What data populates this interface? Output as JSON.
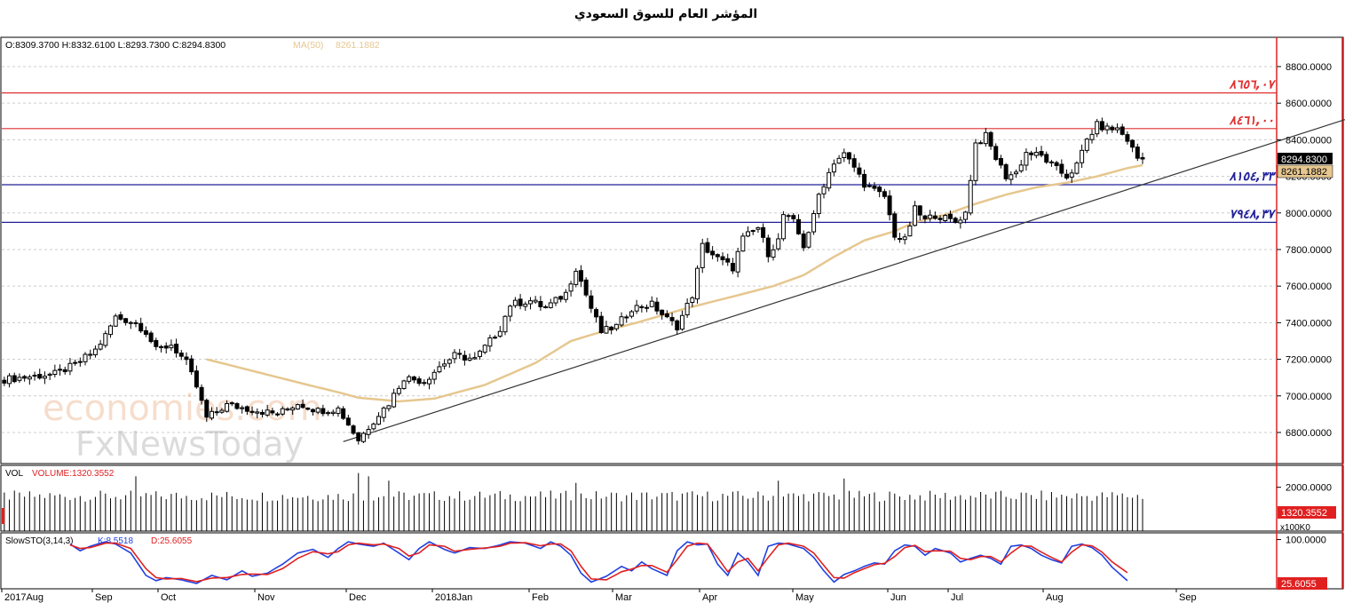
{
  "title": "المؤشر العام للسوق السعودي",
  "watermark": {
    "line1": "economies.com",
    "line2": "FxNewsToday"
  },
  "header": {
    "ohlc": "O:8309.3700  H:8332.6100  L:8293.7300  C:8294.8300",
    "ma_label": "MA(50)",
    "ma_value": "8261.1882"
  },
  "colors": {
    "candle": "#000000",
    "ma": "#e6c78f",
    "resistance": "#e03030",
    "support": "#20209a",
    "trendline": "#333333",
    "stoch_k": "#2040e0",
    "stoch_d": "#e02020",
    "axis_red": "#e02020",
    "grid": "#cccccc"
  },
  "chart_data": {
    "type": "candlestick",
    "y_axis": {
      "ticks": [
        "8800.0000",
        "8600.0000",
        "8400.0000",
        "8200.0000",
        "8000.0000",
        "7800.0000",
        "7600.0000",
        "7400.0000",
        "7200.0000",
        "7000.0000",
        "6800.0000"
      ],
      "ylim": [
        6630,
        8960
      ]
    },
    "x_axis": {
      "labels": [
        "2017Aug",
        "Sep",
        "Oct",
        "Nov",
        "Dec",
        "2018Jan",
        "Feb",
        "Mar",
        "Apr",
        "May",
        "Jun",
        "Jul",
        "Aug",
        "Sep"
      ]
    },
    "price_path": [
      [
        0,
        7090
      ],
      [
        10,
        7120
      ],
      [
        14,
        7170
      ],
      [
        18,
        7250
      ],
      [
        20,
        7330
      ],
      [
        22,
        7430
      ],
      [
        26,
        7400
      ],
      [
        28,
        7350
      ],
      [
        30,
        7250
      ],
      [
        33,
        7280
      ],
      [
        36,
        7180
      ],
      [
        38,
        7050
      ],
      [
        40,
        6880
      ],
      [
        44,
        6950
      ],
      [
        50,
        6920
      ],
      [
        54,
        6900
      ],
      [
        58,
        6960
      ],
      [
        62,
        6920
      ],
      [
        66,
        6930
      ],
      [
        70,
        6760
      ],
      [
        74,
        6900
      ],
      [
        76,
        6960
      ],
      [
        79,
        7100
      ],
      [
        83,
        7080
      ],
      [
        86,
        7160
      ],
      [
        89,
        7220
      ],
      [
        93,
        7200
      ],
      [
        96,
        7300
      ],
      [
        98,
        7370
      ],
      [
        100,
        7500
      ],
      [
        104,
        7520
      ],
      [
        107,
        7480
      ],
      [
        111,
        7560
      ],
      [
        113,
        7700
      ],
      [
        116,
        7480
      ],
      [
        118,
        7350
      ],
      [
        121,
        7380
      ],
      [
        124,
        7480
      ],
      [
        128,
        7500
      ],
      [
        131,
        7420
      ],
      [
        133,
        7380
      ],
      [
        136,
        7550
      ],
      [
        138,
        7820
      ],
      [
        141,
        7750
      ],
      [
        144,
        7700
      ],
      [
        146,
        7860
      ],
      [
        149,
        7920
      ],
      [
        151,
        7780
      ],
      [
        153,
        7850
      ],
      [
        154,
        7990
      ],
      [
        156,
        7950
      ],
      [
        158,
        7820
      ],
      [
        160,
        7980
      ],
      [
        161,
        8100
      ],
      [
        164,
        8280
      ],
      [
        166,
        8320
      ],
      [
        168,
        8250
      ],
      [
        170,
        8160
      ],
      [
        172,
        8120
      ],
      [
        174,
        8090
      ],
      [
        176,
        7880
      ],
      [
        178,
        7850
      ],
      [
        180,
        8020
      ],
      [
        182,
        7960
      ],
      [
        184,
        7990
      ],
      [
        186,
        7970
      ],
      [
        188,
        7950
      ],
      [
        190,
        8000
      ],
      [
        192,
        8380
      ],
      [
        194,
        8420
      ],
      [
        196,
        8300
      ],
      [
        198,
        8200
      ],
      [
        200,
        8220
      ],
      [
        202,
        8330
      ],
      [
        205,
        8310
      ],
      [
        208,
        8240
      ],
      [
        210,
        8200
      ],
      [
        212,
        8260
      ],
      [
        214,
        8400
      ],
      [
        216,
        8480
      ],
      [
        218,
        8460
      ],
      [
        220,
        8460
      ],
      [
        222,
        8400
      ],
      [
        224,
        8300
      ],
      [
        225,
        8295
      ]
    ],
    "ma50_path": [
      [
        40,
        7200
      ],
      [
        50,
        7130
      ],
      [
        60,
        7060
      ],
      [
        66,
        7020
      ],
      [
        70,
        6990
      ],
      [
        78,
        6970
      ],
      [
        85,
        6985
      ],
      [
        95,
        7060
      ],
      [
        105,
        7180
      ],
      [
        112,
        7300
      ],
      [
        118,
        7350
      ],
      [
        125,
        7400
      ],
      [
        135,
        7480
      ],
      [
        145,
        7550
      ],
      [
        152,
        7600
      ],
      [
        158,
        7660
      ],
      [
        164,
        7760
      ],
      [
        170,
        7850
      ],
      [
        176,
        7900
      ],
      [
        180,
        7950
      ],
      [
        186,
        7990
      ],
      [
        192,
        8050
      ],
      [
        198,
        8100
      ],
      [
        204,
        8140
      ],
      [
        210,
        8165
      ],
      [
        216,
        8200
      ],
      [
        222,
        8245
      ],
      [
        225,
        8261
      ]
    ],
    "bars_total": 252,
    "horizontal_levels": [
      {
        "label": "٨٦٥٦,٠٧",
        "value": 8656.07,
        "role": "resistance"
      },
      {
        "label": "٨٤٦١,٠٠",
        "value": 8461.0,
        "role": "resistance"
      },
      {
        "label": "٨١٥٤,٣٣",
        "value": 8154.33,
        "role": "support"
      },
      {
        "label": "٧٩٤٨,٣٧",
        "value": 7948.37,
        "role": "support"
      }
    ],
    "trendline": {
      "from": [
        67,
        6750
      ],
      "to": [
        265,
        8510
      ]
    },
    "last_price_tag": "8294.8300",
    "ma_tag": "8261.1882"
  },
  "volume_panel": {
    "label": "VOL",
    "value_label": "VOLUME:1320.3552",
    "tick": "2000.0000",
    "tick_low": "x100K0",
    "tag": "1320.3552",
    "ylim": [
      0,
      3000
    ],
    "spikes": [
      [
        26,
        2500
      ],
      [
        70,
        2650
      ],
      [
        72,
        2500
      ],
      [
        76,
        2300
      ],
      [
        113,
        2200
      ],
      [
        153,
        2300
      ],
      [
        166,
        2400
      ]
    ],
    "base": 1500
  },
  "stoch_panel": {
    "label": "SlowSTO(3,14,3)",
    "k_label": "K:8.5518",
    "d_label": "D:25.6055",
    "tick": "100.0000",
    "tag": "25.6055",
    "ylim": [
      -10,
      115
    ],
    "k_path": [
      [
        13,
        90
      ],
      [
        15,
        75
      ],
      [
        17,
        85
      ],
      [
        20,
        95
      ],
      [
        22,
        90
      ],
      [
        25,
        70
      ],
      [
        28,
        20
      ],
      [
        30,
        8
      ],
      [
        32,
        15
      ],
      [
        35,
        10
      ],
      [
        38,
        2
      ],
      [
        41,
        20
      ],
      [
        44,
        10
      ],
      [
        47,
        30
      ],
      [
        49,
        18
      ],
      [
        52,
        25
      ],
      [
        55,
        45
      ],
      [
        58,
        70
      ],
      [
        61,
        78
      ],
      [
        64,
        60
      ],
      [
        66,
        80
      ],
      [
        68,
        95
      ],
      [
        70,
        90
      ],
      [
        73,
        85
      ],
      [
        75,
        92
      ],
      [
        78,
        70
      ],
      [
        80,
        55
      ],
      [
        82,
        80
      ],
      [
        84,
        95
      ],
      [
        87,
        78
      ],
      [
        89,
        70
      ],
      [
        92,
        82
      ],
      [
        95,
        80
      ],
      [
        98,
        88
      ],
      [
        100,
        95
      ],
      [
        103,
        92
      ],
      [
        106,
        80
      ],
      [
        108,
        95
      ],
      [
        110,
        85
      ],
      [
        112,
        65
      ],
      [
        114,
        25
      ],
      [
        116,
        5
      ],
      [
        119,
        18
      ],
      [
        122,
        40
      ],
      [
        124,
        30
      ],
      [
        126,
        50
      ],
      [
        128,
        35
      ],
      [
        131,
        20
      ],
      [
        133,
        75
      ],
      [
        135,
        95
      ],
      [
        137,
        88
      ],
      [
        139,
        90
      ],
      [
        141,
        45
      ],
      [
        143,
        20
      ],
      [
        145,
        70
      ],
      [
        147,
        50
      ],
      [
        149,
        20
      ],
      [
        151,
        85
      ],
      [
        153,
        92
      ],
      [
        155,
        90
      ],
      [
        158,
        80
      ],
      [
        160,
        60
      ],
      [
        162,
        30
      ],
      [
        164,
        5
      ],
      [
        166,
        22
      ],
      [
        168,
        30
      ],
      [
        170,
        40
      ],
      [
        172,
        48
      ],
      [
        174,
        45
      ],
      [
        176,
        75
      ],
      [
        178,
        88
      ],
      [
        180,
        85
      ],
      [
        182,
        65
      ],
      [
        184,
        80
      ],
      [
        187,
        70
      ],
      [
        189,
        50
      ],
      [
        191,
        58
      ],
      [
        193,
        65
      ],
      [
        195,
        58
      ],
      [
        197,
        45
      ],
      [
        199,
        85
      ],
      [
        201,
        88
      ],
      [
        203,
        80
      ],
      [
        205,
        65
      ],
      [
        207,
        55
      ],
      [
        209,
        48
      ],
      [
        211,
        85
      ],
      [
        213,
        90
      ],
      [
        215,
        82
      ],
      [
        217,
        65
      ],
      [
        219,
        38
      ],
      [
        222,
        8
      ]
    ],
    "d_path": [
      [
        13,
        88
      ],
      [
        15,
        80
      ],
      [
        17,
        82
      ],
      [
        20,
        92
      ],
      [
        22,
        92
      ],
      [
        25,
        80
      ],
      [
        28,
        35
      ],
      [
        30,
        15
      ],
      [
        32,
        12
      ],
      [
        35,
        13
      ],
      [
        38,
        6
      ],
      [
        41,
        14
      ],
      [
        44,
        15
      ],
      [
        47,
        22
      ],
      [
        49,
        23
      ],
      [
        52,
        22
      ],
      [
        55,
        35
      ],
      [
        58,
        58
      ],
      [
        61,
        73
      ],
      [
        64,
        68
      ],
      [
        66,
        73
      ],
      [
        68,
        88
      ],
      [
        70,
        92
      ],
      [
        73,
        88
      ],
      [
        75,
        90
      ],
      [
        78,
        80
      ],
      [
        80,
        63
      ],
      [
        82,
        70
      ],
      [
        84,
        88
      ],
      [
        87,
        85
      ],
      [
        89,
        74
      ],
      [
        92,
        78
      ],
      [
        95,
        81
      ],
      [
        98,
        85
      ],
      [
        100,
        92
      ],
      [
        103,
        93
      ],
      [
        106,
        86
      ],
      [
        108,
        90
      ],
      [
        110,
        90
      ],
      [
        112,
        75
      ],
      [
        114,
        40
      ],
      [
        116,
        12
      ],
      [
        119,
        10
      ],
      [
        122,
        28
      ],
      [
        124,
        34
      ],
      [
        126,
        42
      ],
      [
        128,
        42
      ],
      [
        131,
        27
      ],
      [
        133,
        55
      ],
      [
        135,
        85
      ],
      [
        137,
        92
      ],
      [
        139,
        90
      ],
      [
        141,
        60
      ],
      [
        143,
        28
      ],
      [
        145,
        50
      ],
      [
        147,
        58
      ],
      [
        149,
        30
      ],
      [
        151,
        60
      ],
      [
        153,
        88
      ],
      [
        155,
        92
      ],
      [
        158,
        85
      ],
      [
        160,
        70
      ],
      [
        162,
        42
      ],
      [
        164,
        15
      ],
      [
        166,
        14
      ],
      [
        168,
        26
      ],
      [
        170,
        35
      ],
      [
        172,
        44
      ],
      [
        174,
        47
      ],
      [
        176,
        62
      ],
      [
        178,
        82
      ],
      [
        180,
        87
      ],
      [
        182,
        73
      ],
      [
        184,
        75
      ],
      [
        187,
        74
      ],
      [
        189,
        58
      ],
      [
        191,
        55
      ],
      [
        193,
        62
      ],
      [
        195,
        62
      ],
      [
        197,
        50
      ],
      [
        199,
        70
      ],
      [
        201,
        86
      ],
      [
        203,
        85
      ],
      [
        205,
        72
      ],
      [
        207,
        60
      ],
      [
        209,
        50
      ],
      [
        211,
        72
      ],
      [
        213,
        88
      ],
      [
        215,
        86
      ],
      [
        217,
        72
      ],
      [
        219,
        50
      ],
      [
        222,
        26
      ]
    ]
  }
}
